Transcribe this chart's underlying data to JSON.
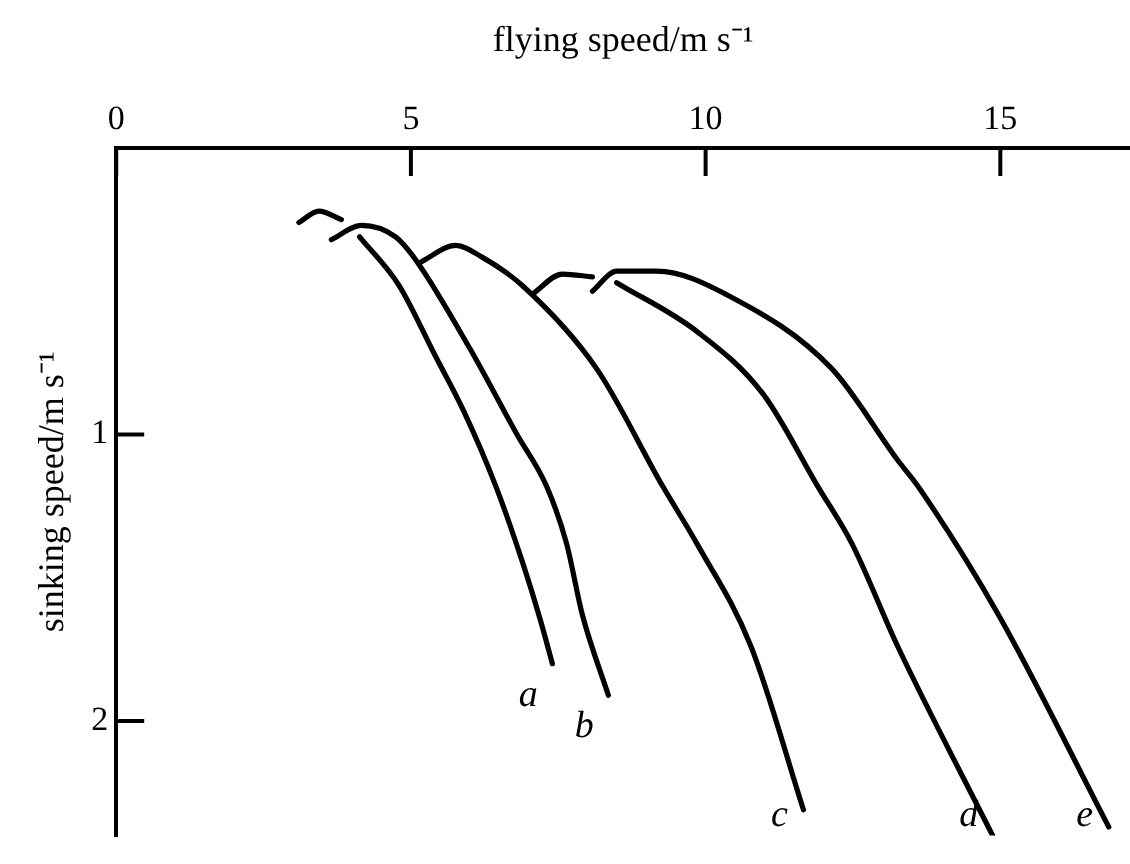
{
  "chart_data": {
    "type": "line",
    "xlabel": "flying speed/m s⁻¹",
    "ylabel": "sinking speed/m s⁻¹",
    "xlim": [
      0,
      17.2
    ],
    "xticks": [
      0,
      5,
      10,
      15
    ],
    "ylim": [
      2.4,
      0
    ],
    "yticks": [
      1,
      2
    ],
    "grid": false,
    "legend": false,
    "marker": "none",
    "line_style": "solid",
    "series": [
      {
        "name": "a",
        "color": "#000000",
        "x": [
          3.1,
          3.44,
          3.82,
          null,
          4.13,
          4.8,
          5.4,
          5.9,
          6.44,
          6.9,
          7.2,
          7.4
        ],
        "values": [
          0.26,
          0.22,
          0.25,
          null,
          0.31,
          0.48,
          0.72,
          0.92,
          1.18,
          1.45,
          1.65,
          1.8
        ]
      },
      {
        "name": "b",
        "color": "#000000",
        "x": [
          3.65,
          4.16,
          4.74,
          5.08,
          6.0,
          6.8,
          7.3,
          7.64,
          7.91,
          8.35
        ],
        "values": [
          0.32,
          0.27,
          0.31,
          0.39,
          0.7,
          1.0,
          1.18,
          1.38,
          1.63,
          1.91
        ]
      },
      {
        "name": "c",
        "color": "#000000",
        "x": [
          5.15,
          5.76,
          6.2,
          6.89,
          8.15,
          9.27,
          9.85,
          10.77,
          11.66
        ],
        "values": [
          0.4,
          0.34,
          0.38,
          0.48,
          0.77,
          1.18,
          1.38,
          1.74,
          2.31
        ]
      },
      {
        "name": "d",
        "color": "#000000",
        "x": [
          7.06,
          7.57,
          8.08,
          null,
          8.49,
          9.85,
          10.98,
          11.9,
          12.48,
          13.26,
          14.87
        ],
        "values": [
          0.51,
          0.44,
          0.45,
          null,
          0.47,
          0.64,
          0.86,
          1.18,
          1.38,
          1.74,
          2.4
        ]
      },
      {
        "name": "e",
        "color": "#000000",
        "x": [
          8.08,
          8.49,
          9.17,
          10.43,
          12.14,
          13.26,
          13.6,
          14.97,
          16.84
        ],
        "values": [
          0.5,
          0.43,
          0.43,
          0.52,
          0.77,
          1.09,
          1.18,
          1.63,
          2.37
        ]
      }
    ]
  }
}
